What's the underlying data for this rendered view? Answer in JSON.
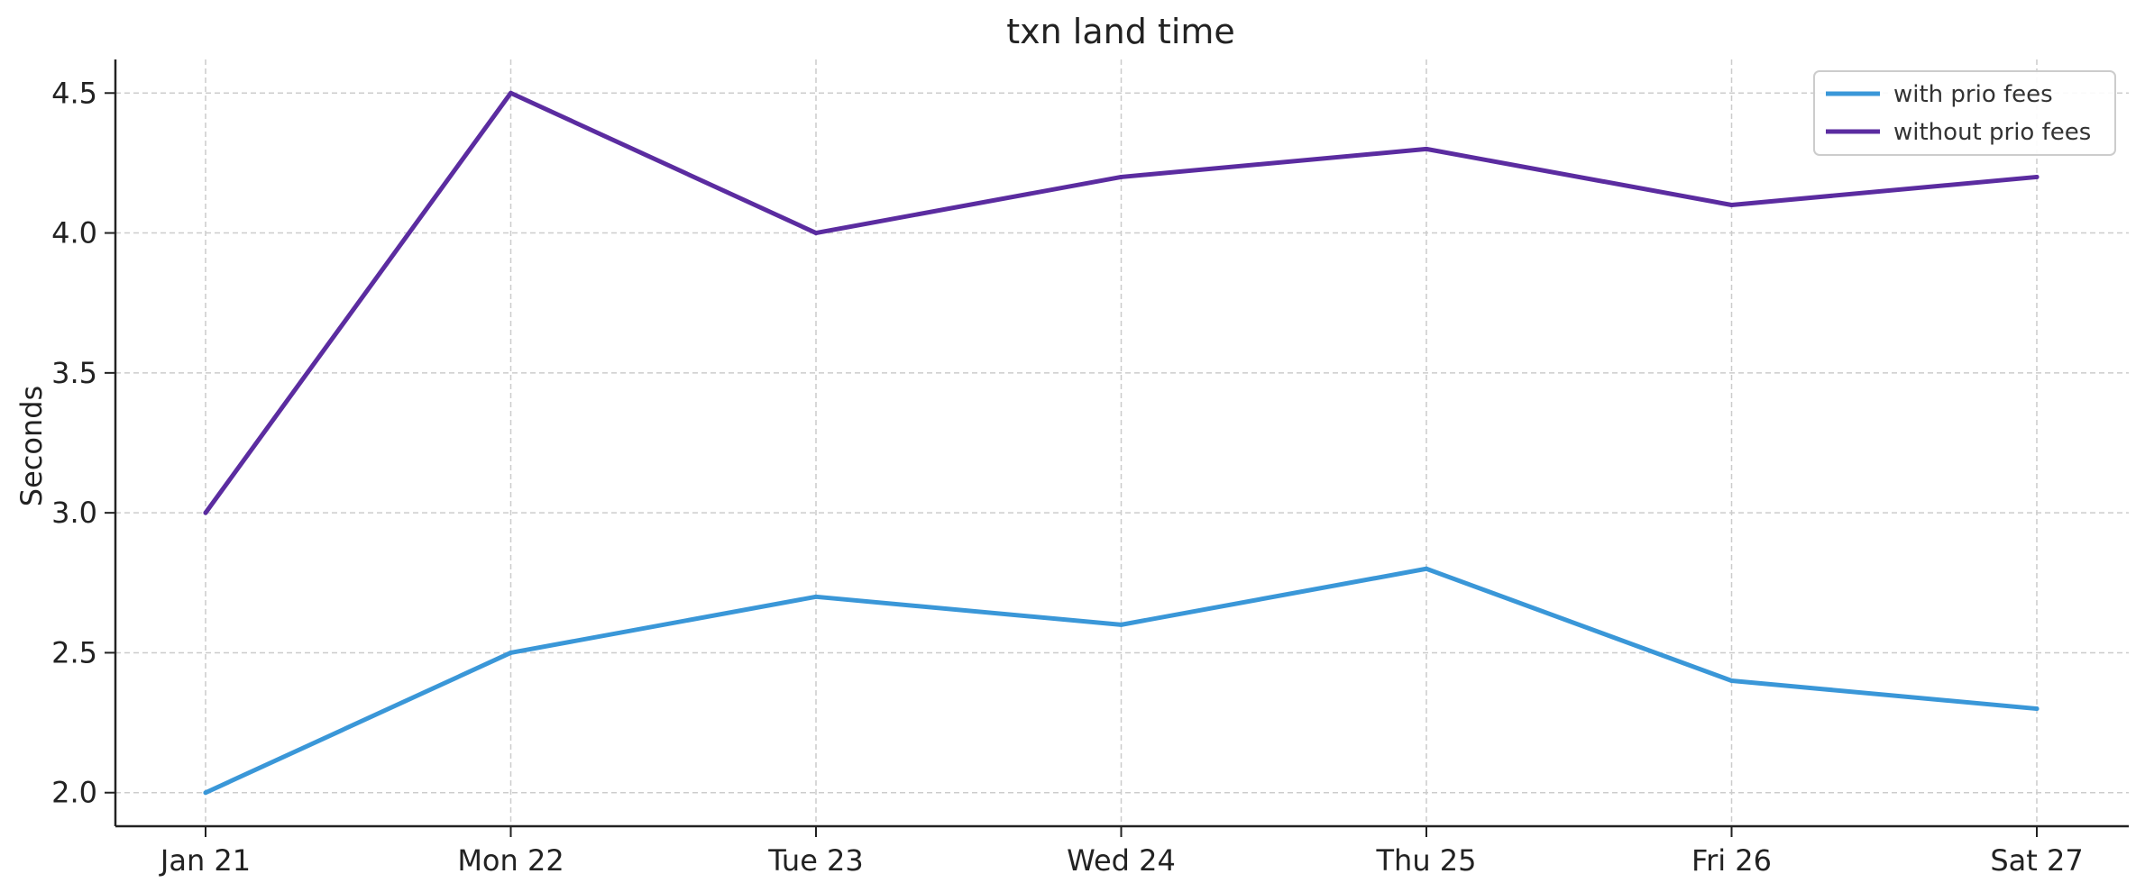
{
  "chart_data": {
    "type": "line",
    "title": "txn land time",
    "xlabel": "",
    "ylabel": "Seconds",
    "categories": [
      "Jan 21",
      "Mon 22",
      "Tue 23",
      "Wed 24",
      "Thu 25",
      "Fri 26",
      "Sat 27"
    ],
    "series": [
      {
        "name": "with prio fees",
        "color": "#3a97d8",
        "values": [
          2.0,
          2.5,
          2.7,
          2.6,
          2.8,
          2.4,
          2.3
        ]
      },
      {
        "name": "without prio fees",
        "color": "#5b2ca0",
        "values": [
          3.0,
          4.5,
          4.0,
          4.2,
          4.3,
          4.1,
          4.2
        ]
      }
    ],
    "yticks": [
      "2.0",
      "2.5",
      "3.0",
      "3.5",
      "4.0",
      "4.5"
    ],
    "ylim": [
      1.88,
      4.62
    ],
    "grid": true,
    "legend_position": "top-right"
  }
}
